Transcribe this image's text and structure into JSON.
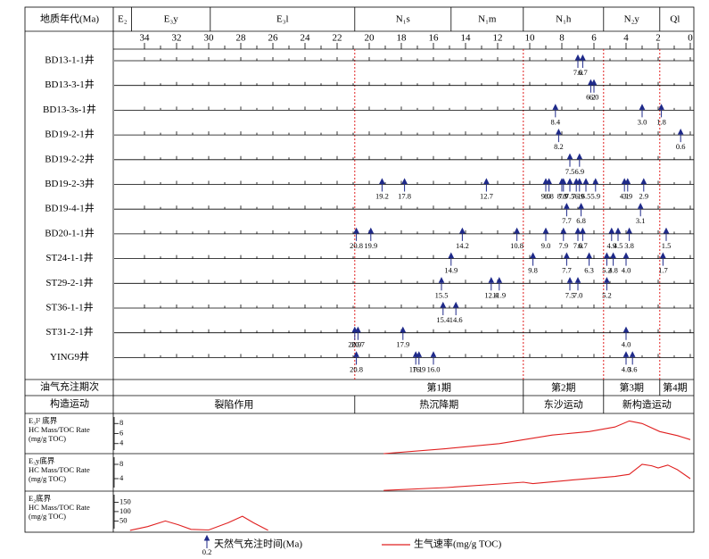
{
  "header": {
    "title": "地质年代(Ma)"
  },
  "axis": {
    "xlim": [
      36,
      0
    ],
    "xticks": [
      34,
      32,
      30,
      28,
      26,
      24,
      22,
      20,
      18,
      16,
      14,
      12,
      10,
      8,
      6,
      4,
      2,
      0
    ]
  },
  "periods": [
    {
      "label": "E₂",
      "from": 36,
      "to": 34.8
    },
    {
      "label": "E₃y",
      "from": 34.8,
      "to": 29.9
    },
    {
      "label": "E₃l",
      "from": 29.9,
      "to": 20.9
    },
    {
      "label": "N₁s",
      "from": 20.9,
      "to": 14.9
    },
    {
      "label": "N₁m",
      "from": 14.9,
      "to": 10.4
    },
    {
      "label": "N₁h",
      "from": 10.4,
      "to": 5.4
    },
    {
      "label": "N₂y",
      "from": 5.4,
      "to": 1.9
    },
    {
      "label": "Ql",
      "from": 1.9,
      "to": 0
    }
  ],
  "red_lines": [
    20.9,
    10.4,
    5.4,
    1.9
  ],
  "wells": [
    {
      "name": "BD13-1-1井",
      "values": [
        7.0,
        6.7
      ],
      "value_labels": [
        "7.0",
        "6.7"
      ]
    },
    {
      "name": "BD13-3-1井",
      "values": [
        6.2,
        6.0
      ],
      "value_labels": [
        "6.2",
        "6.0"
      ]
    },
    {
      "name": "BD13-3s-1井",
      "values": [
        8.4,
        3.0,
        1.8
      ],
      "value_labels": [
        "8.4",
        "3.0",
        "1.8"
      ]
    },
    {
      "name": "BD19-2-1井",
      "values": [
        8.2,
        0.6
      ],
      "value_labels": [
        "8.2",
        "0.6"
      ]
    },
    {
      "name": "BD19-2-2井",
      "values": [
        7.5,
        6.9
      ],
      "value_labels": [
        "7.5",
        "6.9"
      ]
    },
    {
      "name": "BD19-2-3井",
      "values": [
        19.2,
        17.8,
        12.7,
        9.0,
        8.8,
        8.0,
        7.9,
        7.5,
        7.1,
        6.9,
        6.5,
        5.9,
        4.1,
        3.9,
        2.9
      ],
      "value_labels": [
        "19.2",
        "17.8",
        "12.7",
        "9.0",
        "8.8",
        "8.0",
        "7.9",
        "7.5",
        "7.1",
        "6.9",
        "6.5",
        "5.9",
        "4.1",
        "3.9",
        "2.9"
      ]
    },
    {
      "name": "BD19-4-1井",
      "values": [
        7.7,
        6.8,
        3.1
      ],
      "value_labels": [
        "7.7",
        "6.8",
        "3.1"
      ]
    },
    {
      "name": "BD20-1-1井",
      "values": [
        20.8,
        19.9,
        14.2,
        10.8,
        9.0,
        7.9,
        7.0,
        6.7,
        4.9,
        4.5,
        3.8,
        1.5
      ],
      "value_labels": [
        "20.8",
        "19.9",
        "14.2",
        "10.8",
        "9.0",
        "7.9",
        "7.0",
        "6.7",
        "4.9",
        "4.5",
        "3.8",
        "1.5"
      ]
    },
    {
      "name": "ST24-1-1井",
      "values": [
        14.9,
        9.8,
        7.7,
        6.3,
        5.2,
        4.8,
        4.0,
        1.7
      ],
      "value_labels": [
        "14.9",
        "9.8",
        "7.7",
        "6.3",
        "5.2",
        "4.8",
        "4.0",
        "1.7"
      ]
    },
    {
      "name": "ST29-2-1井",
      "values": [
        15.5,
        12.4,
        11.9,
        7.5,
        7.0,
        5.2
      ],
      "value_labels": [
        "15.5",
        "12.4",
        "11.9",
        "7.5",
        "7.0",
        "5.2"
      ]
    },
    {
      "name": "ST36-1-1井",
      "values": [
        15.4,
        14.6
      ],
      "value_labels": [
        "15.4",
        "14.6"
      ]
    },
    {
      "name": "ST31-2-1井",
      "values": [
        20.9,
        20.7,
        17.9,
        4.0
      ],
      "value_labels": [
        "20.9",
        "20.7",
        "17.9",
        "4.0"
      ]
    },
    {
      "name": "YING9井",
      "values": [
        20.8,
        17.1,
        16.9,
        16.0,
        4.0,
        3.6
      ],
      "value_labels": [
        "20.8",
        "17.1",
        "16.9",
        "16.0",
        "4.0",
        "3.6"
      ]
    }
  ],
  "charge_stages": {
    "label": "油气充注期次",
    "spans": [
      {
        "label": "第1期",
        "from": 20.9,
        "to": 10.4
      },
      {
        "label": "第2期",
        "from": 10.4,
        "to": 5.4
      },
      {
        "label": "第3期",
        "from": 5.4,
        "to": 1.9
      },
      {
        "label": "第4期",
        "from": 1.9,
        "to": 0
      }
    ]
  },
  "tectonics": {
    "label": "构造运动",
    "spans": [
      {
        "label": "裂陷作用",
        "from": 36,
        "to": 20.9
      },
      {
        "label": "热沉降期",
        "from": 20.9,
        "to": 10.4
      },
      {
        "label": "东沙运动",
        "from": 10.4,
        "to": 5.4
      },
      {
        "label": "新构造运动",
        "from": 5.4,
        "to": 0
      }
    ]
  },
  "panels": [
    {
      "title": "E₃l² 底界",
      "subtitle": "HC Mass/TOC Rate",
      "unit": "(mg/g TOC)",
      "ylim": [
        2,
        10
      ],
      "yticks": [
        8,
        6,
        4
      ],
      "x": [
        19.1,
        15.2,
        11.9,
        8.6,
        6.3,
        4.7,
        3.8,
        3,
        1.9,
        0.8,
        0
      ],
      "values": [
        2,
        3,
        4,
        5.7,
        6.4,
        7.3,
        8.5,
        8,
        6.4,
        5.6,
        4.8
      ]
    },
    {
      "title": "E₃y底界",
      "subtitle": "HC Mass/TOC Rate",
      "unit": "(mg/g TOC)",
      "ylim": [
        0.5,
        11
      ],
      "yticks": [
        8,
        4
      ],
      "x": [
        19.1,
        15.2,
        11.9,
        10.4,
        9.8,
        7.4,
        4.7,
        3.8,
        3,
        2.4,
        2,
        1.4,
        0.8,
        0
      ],
      "values": [
        0.7,
        1.5,
        2.5,
        3,
        2.6,
        3.6,
        4.6,
        5.2,
        8,
        7.6,
        7,
        7.8,
        6.5,
        4
      ]
    },
    {
      "title": "E₂底界",
      "subtitle": "HC Mass/TOC Rate",
      "unit": "(mg/g TOC)",
      "ylim": [
        -10,
        209
      ],
      "yticks": [
        150,
        100,
        50
      ],
      "x": [
        34.9,
        33.8,
        32.7,
        31.9,
        31.1,
        30,
        28.8,
        27.9,
        27.2,
        26.3
      ],
      "values": [
        0,
        20,
        50,
        30,
        5,
        2,
        40,
        75,
        40,
        0
      ]
    }
  ],
  "legend": {
    "arrow_label": "0.2",
    "arrow_text": "天然气充注时间(Ma)",
    "line_text": "生气速率(mg/g TOC)"
  }
}
